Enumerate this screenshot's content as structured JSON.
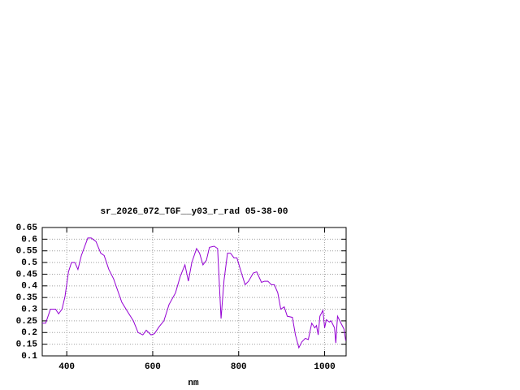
{
  "chart_data": {
    "type": "line",
    "title": "sr_2026_072_TGF__y03_r_rad 05-38-00",
    "x_label": "nm",
    "x": [
      343,
      351,
      362,
      374,
      381,
      389,
      396,
      404,
      411,
      419,
      426,
      434,
      442,
      449,
      457,
      468,
      479,
      487,
      498,
      509,
      528,
      543,
      555,
      566,
      577,
      585,
      596,
      604,
      615,
      626,
      638,
      653,
      664,
      675,
      683,
      691,
      702,
      709,
      717,
      725,
      732,
      743,
      751,
      759,
      766,
      774,
      781,
      789,
      796,
      804,
      815,
      823,
      834,
      842,
      853,
      860,
      868,
      876,
      883,
      891,
      898,
      906,
      913,
      925,
      932,
      940,
      947,
      955,
      962,
      970,
      977,
      981,
      985,
      989,
      996,
      1000,
      1004,
      1011,
      1015,
      1023,
      1026,
      1030,
      1038,
      1045,
      1049
    ],
    "series": [
      {
        "color": "#9400d3",
        "values": [
          0.24,
          0.24,
          0.3,
          0.3,
          0.28,
          0.3,
          0.355,
          0.46,
          0.5,
          0.5,
          0.47,
          0.53,
          0.57,
          0.605,
          0.605,
          0.59,
          0.54,
          0.53,
          0.47,
          0.43,
          0.33,
          0.285,
          0.25,
          0.2,
          0.19,
          0.21,
          0.19,
          0.195,
          0.225,
          0.25,
          0.32,
          0.37,
          0.44,
          0.49,
          0.42,
          0.5,
          0.56,
          0.54,
          0.49,
          0.51,
          0.565,
          0.57,
          0.56,
          0.26,
          0.425,
          0.54,
          0.54,
          0.52,
          0.52,
          0.47,
          0.405,
          0.42,
          0.455,
          0.46,
          0.415,
          0.42,
          0.42,
          0.405,
          0.405,
          0.37,
          0.3,
          0.31,
          0.27,
          0.265,
          0.19,
          0.135,
          0.16,
          0.175,
          0.17,
          0.24,
          0.22,
          0.23,
          0.19,
          0.27,
          0.295,
          0.22,
          0.255,
          0.245,
          0.25,
          0.22,
          0.155,
          0.27,
          0.24,
          0.215,
          0.165
        ]
      }
    ],
    "xlim": [
      343,
      1050
    ],
    "ylim": [
      0.1,
      0.65
    ],
    "xticks": [
      400,
      600,
      800,
      1000
    ],
    "yticks": [
      0.1,
      0.15,
      0.2,
      0.25,
      0.3,
      0.35,
      0.4,
      0.45,
      0.5,
      0.55,
      0.6,
      0.65
    ],
    "grid": true
  }
}
